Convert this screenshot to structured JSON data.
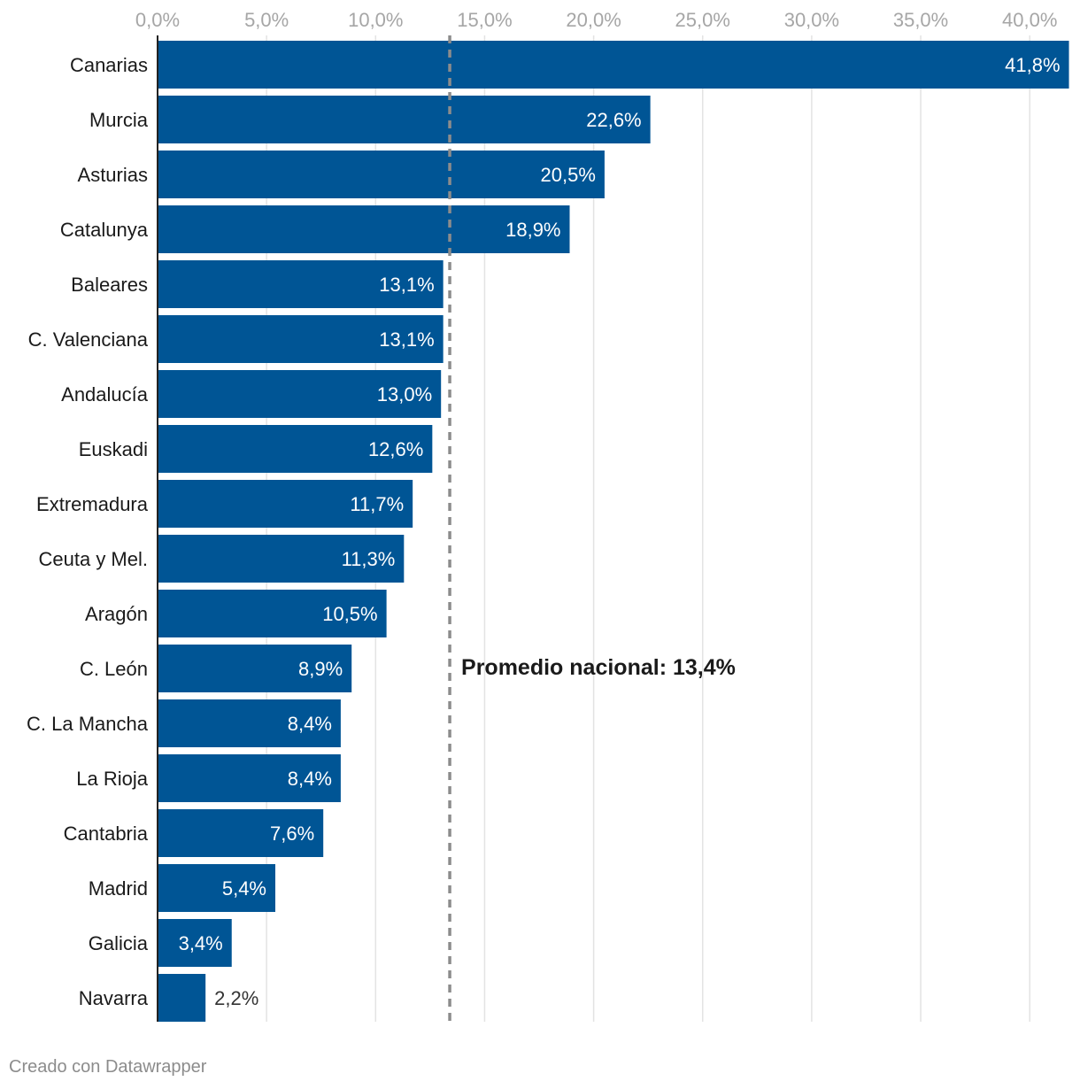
{
  "chart_data": {
    "type": "bar",
    "orientation": "horizontal",
    "title": "",
    "xlabel": "",
    "ylabel": "",
    "xlim": [
      0,
      42
    ],
    "ticks": [
      0,
      5,
      10,
      15,
      20,
      25,
      30,
      35,
      40
    ],
    "tick_labels": [
      "0,0%",
      "5,0%",
      "10,0%",
      "15,0%",
      "20,0%",
      "25,0%",
      "30,0%",
      "35,0%",
      "40,0%"
    ],
    "grid": true,
    "categories": [
      "Canarias",
      "Murcia",
      "Asturias",
      "Catalunya",
      "Baleares",
      "C. Valenciana",
      "Andalucía",
      "Euskadi",
      "Extremadura",
      "Ceuta y Mel.",
      "Aragón",
      "C. León",
      "C. La Mancha",
      "La Rioja",
      "Cantabria",
      "Madrid",
      "Galicia",
      "Navarra"
    ],
    "values": [
      41.8,
      22.6,
      20.5,
      18.9,
      13.1,
      13.1,
      13.0,
      12.6,
      11.7,
      11.3,
      10.5,
      8.9,
      8.4,
      8.4,
      7.6,
      5.4,
      3.4,
      2.2
    ],
    "value_labels": [
      "41,8%",
      "22,6%",
      "20,5%",
      "18,9%",
      "13,1%",
      "13,1%",
      "13,0%",
      "12,6%",
      "11,7%",
      "11,3%",
      "10,5%",
      "8,9%",
      "8,4%",
      "8,4%",
      "7,6%",
      "5,4%",
      "3,4%",
      "2,2%"
    ],
    "reference_line": {
      "value": 13.4,
      "label": "Promedio nacional: 13,4%"
    }
  },
  "colors": {
    "bar": "#005595",
    "grid": "#e3e3e3",
    "reference": "#8c8c8c",
    "label_inside": "#ffffff",
    "label_outside": "#333333"
  },
  "footer": {
    "credit": "Creado con Datawrapper"
  }
}
